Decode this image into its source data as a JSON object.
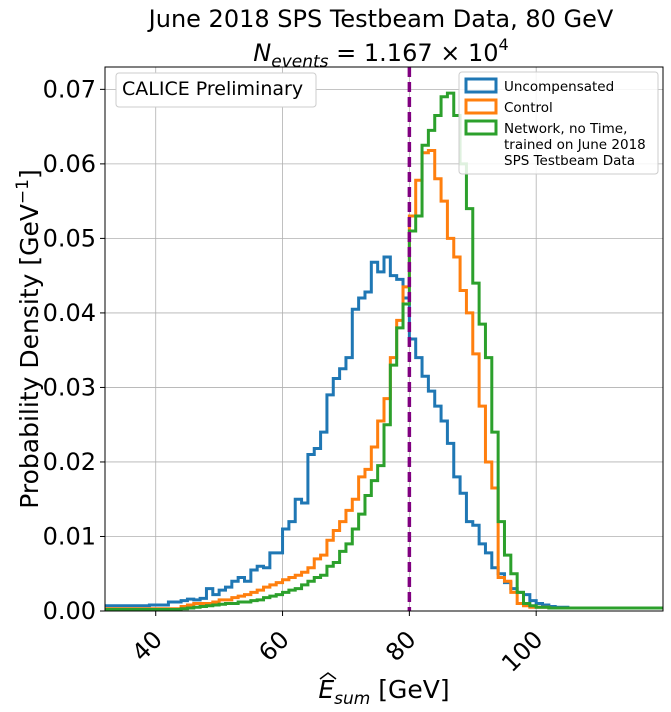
{
  "chart_data": {
    "type": "step-histogram",
    "title_line1": "June 2018 SPS Testbeam Data, 80 GeV",
    "title_line2": {
      "N": "N",
      "sub": "events",
      "rest": " = 1.167 × 10",
      "sup": "4"
    },
    "xlabel": {
      "E": "E",
      "sub": "sum",
      "unit": " [GeV]"
    },
    "ylabel": {
      "main": "Probability Density [GeV",
      "sup": "−1",
      "close": "]"
    },
    "xlim": [
      32,
      120
    ],
    "ylim": [
      0,
      0.073
    ],
    "xticks": [
      40,
      60,
      80,
      100
    ],
    "yticks": [
      0.0,
      0.01,
      0.02,
      0.03,
      0.04,
      0.05,
      0.06,
      0.07
    ],
    "ytick_labels": [
      "0.00",
      "0.01",
      "0.02",
      "0.03",
      "0.04",
      "0.05",
      "0.06",
      "0.07"
    ],
    "grid": true,
    "reference_line": {
      "x": 80,
      "color": "#800080",
      "style": "dashed"
    },
    "annotation": "CALICE Preliminary",
    "legend_position": "top-right",
    "bin_width": 1,
    "x_start": 32,
    "series": [
      {
        "name": "Uncompensated",
        "color": "#1f77b4",
        "values": [
          0.0007,
          0.0007,
          0.0007,
          0.0007,
          0.0007,
          0.0007,
          0.0007,
          0.0008,
          0.0008,
          0.0008,
          0.0012,
          0.0012,
          0.0014,
          0.0016,
          0.0015,
          0.0017,
          0.003,
          0.0022,
          0.0028,
          0.0032,
          0.004,
          0.0045,
          0.004,
          0.0055,
          0.006,
          0.0058,
          0.0078,
          0.0078,
          0.011,
          0.012,
          0.015,
          0.0145,
          0.021,
          0.0218,
          0.024,
          0.029,
          0.0312,
          0.0325,
          0.034,
          0.0405,
          0.042,
          0.0428,
          0.0468,
          0.0455,
          0.0475,
          0.045,
          0.0445,
          0.042,
          0.0365,
          0.034,
          0.0315,
          0.0295,
          0.0275,
          0.0255,
          0.0225,
          0.018,
          0.0158,
          0.012,
          0.0115,
          0.009,
          0.0078,
          0.0058,
          0.005,
          0.0038,
          0.003,
          0.0025,
          0.0022,
          0.0014,
          0.001,
          0.0008,
          0.0006,
          0.0005,
          0.0005,
          0.0004,
          0.0004,
          0.0004,
          0.0004,
          0.0004,
          0.0004,
          0.0004,
          0.0004,
          0.0004,
          0.0004,
          0.0004,
          0.0004,
          0.0004,
          0.0004,
          0.0004
        ]
      },
      {
        "name": "Control",
        "color": "#ff7f0e",
        "values": [
          0.0003,
          0.0003,
          0.0003,
          0.0003,
          0.0003,
          0.0003,
          0.0003,
          0.0003,
          0.0003,
          0.0003,
          0.0003,
          0.0003,
          0.0006,
          0.0008,
          0.001,
          0.001,
          0.001,
          0.0012,
          0.0015,
          0.0015,
          0.0018,
          0.002,
          0.0022,
          0.0025,
          0.0028,
          0.0032,
          0.0035,
          0.0038,
          0.0042,
          0.0045,
          0.0048,
          0.0052,
          0.0058,
          0.007,
          0.0075,
          0.0095,
          0.0108,
          0.012,
          0.0135,
          0.015,
          0.018,
          0.019,
          0.022,
          0.0255,
          0.0285,
          0.034,
          0.039,
          0.0435,
          0.053,
          0.0578,
          0.0615,
          0.0618,
          0.058,
          0.055,
          0.05,
          0.0475,
          0.043,
          0.04,
          0.0345,
          0.0275,
          0.02,
          0.0165,
          0.0045,
          0.004,
          0.0025,
          0.001,
          0.0007,
          0.0005,
          0.0005,
          0.0005,
          0.0004,
          0.0004,
          0.0004,
          0.0004,
          0.0004,
          0.0004,
          0.0004,
          0.0004,
          0.0004,
          0.0004,
          0.0004,
          0.0004,
          0.0004,
          0.0004,
          0.0004,
          0.0004,
          0.0004,
          0.0004
        ]
      },
      {
        "name": "Network, no Time, trained on June 2018 SPS Testbeam Data",
        "name_lines": [
          "Network, no Time,",
          "trained on June 2018",
          " SPS Testbeam Data"
        ],
        "color": "#2ca02c",
        "values": [
          0.0002,
          0.0002,
          0.0002,
          0.0002,
          0.0002,
          0.0002,
          0.0002,
          0.0002,
          0.0002,
          0.0002,
          0.0002,
          0.0002,
          0.0003,
          0.0004,
          0.0005,
          0.0006,
          0.0007,
          0.0008,
          0.0009,
          0.001,
          0.001,
          0.0012,
          0.0012,
          0.0014,
          0.0015,
          0.0018,
          0.002,
          0.0022,
          0.0025,
          0.0028,
          0.003,
          0.0035,
          0.004,
          0.0045,
          0.0048,
          0.006,
          0.0065,
          0.008,
          0.009,
          0.011,
          0.013,
          0.0155,
          0.0175,
          0.0195,
          0.025,
          0.033,
          0.038,
          0.0412,
          0.051,
          0.053,
          0.0625,
          0.0645,
          0.0665,
          0.069,
          0.0695,
          0.0665,
          0.06,
          0.054,
          0.044,
          0.0385,
          0.034,
          0.024,
          0.012,
          0.0075,
          0.005,
          0.0025,
          0.001,
          0.0007,
          0.0005,
          0.0005,
          0.0004,
          0.0004,
          0.0004,
          0.0004,
          0.0004,
          0.0004,
          0.0004,
          0.0004,
          0.0004,
          0.0004,
          0.0004,
          0.0004,
          0.0004,
          0.0004,
          0.0004,
          0.0004,
          0.0004,
          0.0004
        ]
      }
    ]
  }
}
